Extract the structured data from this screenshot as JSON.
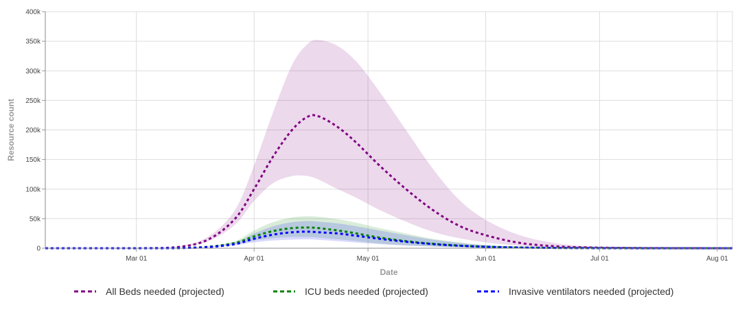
{
  "chart_data": {
    "type": "line",
    "xlabel": "Date",
    "ylabel": "Resource count",
    "x_start": "2020-02-06",
    "x_end": "2020-08-05",
    "xlim": [
      "2020-02-06",
      "2020-08-05"
    ],
    "ylim": [
      0,
      400000
    ],
    "y_ticks": [
      "0",
      "50k",
      "100k",
      "150k",
      "200k",
      "250k",
      "300k",
      "350k",
      "400k"
    ],
    "x_ticks": [
      {
        "label": "Mar 01",
        "date": "2020-03-01"
      },
      {
        "label": "Apr 01",
        "date": "2020-04-01"
      },
      {
        "label": "May 01",
        "date": "2020-05-01"
      },
      {
        "label": "Jun 01",
        "date": "2020-06-01"
      },
      {
        "label": "Jul 01",
        "date": "2020-07-01"
      },
      {
        "label": "Aug 01",
        "date": "2020-08-01"
      }
    ],
    "grid": true,
    "legend_position": "bottom",
    "x": [
      "2020-02-06",
      "2020-03-01",
      "2020-03-12",
      "2020-03-20",
      "2020-03-27",
      "2020-04-01",
      "2020-04-06",
      "2020-04-11",
      "2020-04-15",
      "2020-04-18",
      "2020-04-23",
      "2020-04-28",
      "2020-05-04",
      "2020-05-11",
      "2020-05-18",
      "2020-05-25",
      "2020-06-01",
      "2020-06-10",
      "2020-06-20",
      "2020-07-01",
      "2020-07-15",
      "2020-08-05"
    ],
    "series": [
      {
        "name": "All Beds needed (projected)",
        "color": "#800080",
        "values": [
          0,
          0,
          2000,
          15000,
          50000,
          100000,
          155000,
          200000,
          222000,
          223000,
          205000,
          178000,
          140000,
          100000,
          65000,
          38000,
          22000,
          9000,
          3000,
          1000,
          300,
          0
        ],
        "lower": [
          0,
          0,
          1500,
          12000,
          40000,
          80000,
          110000,
          122000,
          122000,
          116000,
          100000,
          85000,
          65000,
          45000,
          28000,
          17000,
          10000,
          4000,
          1500,
          500,
          100,
          0
        ],
        "upper": [
          0,
          0,
          3000,
          20000,
          65000,
          140000,
          230000,
          310000,
          345000,
          352000,
          342000,
          315000,
          265000,
          200000,
          135000,
          82000,
          48000,
          22000,
          8000,
          2500,
          700,
          0
        ]
      },
      {
        "name": "ICU beds needed (projected)",
        "color": "#008000",
        "values": [
          0,
          0,
          300,
          2500,
          9000,
          20000,
          29000,
          34000,
          35000,
          34000,
          30000,
          25000,
          18000,
          12000,
          7500,
          4500,
          2500,
          1200,
          500,
          200,
          50,
          0
        ],
        "lower": [
          0,
          0,
          200,
          2000,
          7000,
          13000,
          17000,
          19000,
          19000,
          18000,
          15000,
          12000,
          8000,
          5000,
          3000,
          1800,
          1000,
          500,
          200,
          80,
          20,
          0
        ],
        "upper": [
          0,
          0,
          400,
          3500,
          12000,
          30000,
          44000,
          52000,
          54000,
          53000,
          49000,
          43000,
          34000,
          25000,
          16000,
          10000,
          5500,
          2600,
          1100,
          400,
          100,
          0
        ]
      },
      {
        "name": "Invasive ventilators needed (projected)",
        "color": "#0000ff",
        "values": [
          0,
          0,
          250,
          2000,
          7000,
          16000,
          23000,
          27000,
          28000,
          27000,
          25000,
          21000,
          16000,
          11000,
          7000,
          4200,
          2400,
          1100,
          450,
          180,
          40,
          0
        ],
        "lower": [
          0,
          0,
          150,
          1500,
          5000,
          10000,
          13000,
          14500,
          15000,
          14000,
          12000,
          9500,
          7000,
          4500,
          2800,
          1600,
          900,
          400,
          150,
          60,
          15,
          0
        ],
        "upper": [
          0,
          0,
          350,
          2800,
          10000,
          25000,
          37000,
          44000,
          46000,
          45000,
          42000,
          37000,
          30000,
          22000,
          14500,
          9000,
          5000,
          2400,
          1000,
          350,
          90,
          0
        ]
      }
    ]
  }
}
